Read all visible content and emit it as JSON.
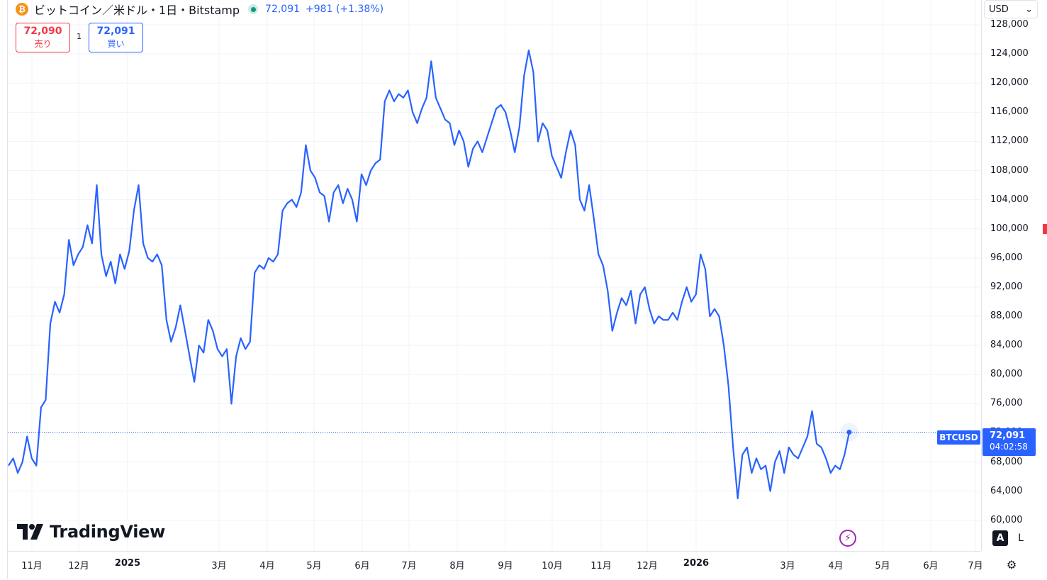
{
  "header": {
    "coin_glyph": "₿",
    "title": "ビットコイン／米ドル・1日・Bitstamp",
    "price": "72,091",
    "change": "+981 (+1.38%)"
  },
  "trade": {
    "sell_value": "72,090",
    "sell_label": "売り",
    "spread": "1",
    "buy_value": "72,091",
    "buy_label": "買い"
  },
  "currency_select": {
    "value": "USD",
    "chevron": "⌄"
  },
  "last_price": {
    "symbol": "BTCUSD",
    "price": "72,091",
    "countdown": "04:02:58"
  },
  "logo": {
    "text": "TradingView"
  },
  "controls": {
    "auto_label": "A",
    "log_label": "L",
    "bolt_glyph": "⚡",
    "settings_glyph": "⚙"
  },
  "colors": {
    "line": "#2962ff",
    "sell": "#f23645",
    "buy": "#2962ff",
    "grid": "#f0f3fa"
  },
  "chart_data": {
    "type": "line",
    "series": [
      {
        "values": [
          67500,
          68500,
          66500,
          68000,
          71500,
          68500,
          67500,
          75500,
          76500,
          87000,
          90000,
          88500,
          91000,
          98500,
          95000,
          96500,
          97500,
          100500,
          98000,
          106000,
          96500,
          93500,
          95500,
          92500,
          96500,
          94500,
          97000,
          102500,
          106000,
          98000,
          96000,
          95500,
          96500,
          95000,
          87500,
          84500,
          86500,
          89500,
          86000,
          82500,
          79000,
          84000,
          83000,
          87500,
          86000,
          83500,
          82500,
          83500,
          76000,
          82500,
          85000,
          83500,
          84500,
          94000,
          95000,
          94500,
          96000,
          95500,
          96500,
          102500,
          103500,
          104000,
          103000,
          105000,
          111500,
          108000,
          107000,
          105000,
          104500,
          101000,
          105000,
          106000,
          103500,
          105500,
          104000,
          101000,
          107500,
          106000,
          108000,
          109000,
          109500,
          117500,
          119000,
          117500,
          118500,
          118000,
          119000,
          116000,
          114500,
          116500,
          118000,
          123000,
          118000,
          116500,
          115000,
          114500,
          111500,
          113500,
          112000,
          108500,
          111000,
          112000,
          110500,
          112500,
          114500,
          116500,
          117000,
          116000,
          113500,
          110500,
          114000,
          121000,
          124500,
          121500,
          112000,
          114500,
          113500,
          110000,
          108500,
          107000,
          110500,
          113500,
          111500,
          104000,
          102500,
          106000,
          101500,
          96500,
          95000,
          91500,
          86000,
          88500,
          90500,
          89500,
          91500,
          87000,
          91000,
          92000,
          89000,
          87000,
          88000,
          87500,
          87500,
          88500,
          87500,
          90000,
          92000,
          90000,
          91000,
          96500,
          94500,
          88000,
          89000,
          88000,
          84000,
          78500,
          70000,
          63000,
          69000,
          70000,
          66500,
          68500,
          67000,
          67500,
          64000,
          68000,
          69500,
          66500,
          70000,
          69000,
          68500,
          70000,
          71500,
          75000,
          70500,
          70000,
          68500,
          66500,
          67500,
          67000,
          69000,
          72091
        ]
      }
    ],
    "y_ticks": [
      "128,000",
      "124,000",
      "120,000",
      "116,000",
      "112,000",
      "108,000",
      "104,000",
      "100,000",
      "96,000",
      "92,000",
      "88,000",
      "84,000",
      "80,000",
      "76,000",
      "72,000",
      "68,000",
      "64,000",
      "60,000"
    ],
    "x_ticks": [
      {
        "label": "11月",
        "bold": false
      },
      {
        "label": "12月",
        "bold": false
      },
      {
        "label": "2025",
        "bold": true
      },
      {
        "label": "3月",
        "bold": false
      },
      {
        "label": "4月",
        "bold": false
      },
      {
        "label": "5月",
        "bold": false
      },
      {
        "label": "6月",
        "bold": false
      },
      {
        "label": "7月",
        "bold": false
      },
      {
        "label": "8月",
        "bold": false
      },
      {
        "label": "9月",
        "bold": false
      },
      {
        "label": "10月",
        "bold": false
      },
      {
        "label": "11月",
        "bold": false
      },
      {
        "label": "12月",
        "bold": false
      },
      {
        "label": "2026",
        "bold": true
      },
      {
        "label": "3月",
        "bold": false
      },
      {
        "label": "4月",
        "bold": false
      },
      {
        "label": "5月",
        "bold": false
      },
      {
        "label": "6月",
        "bold": false
      },
      {
        "label": "7月",
        "bold": false
      }
    ],
    "ylim": [
      59300,
      128000
    ],
    "last_value": 72091,
    "grid": true,
    "legend": "none"
  }
}
